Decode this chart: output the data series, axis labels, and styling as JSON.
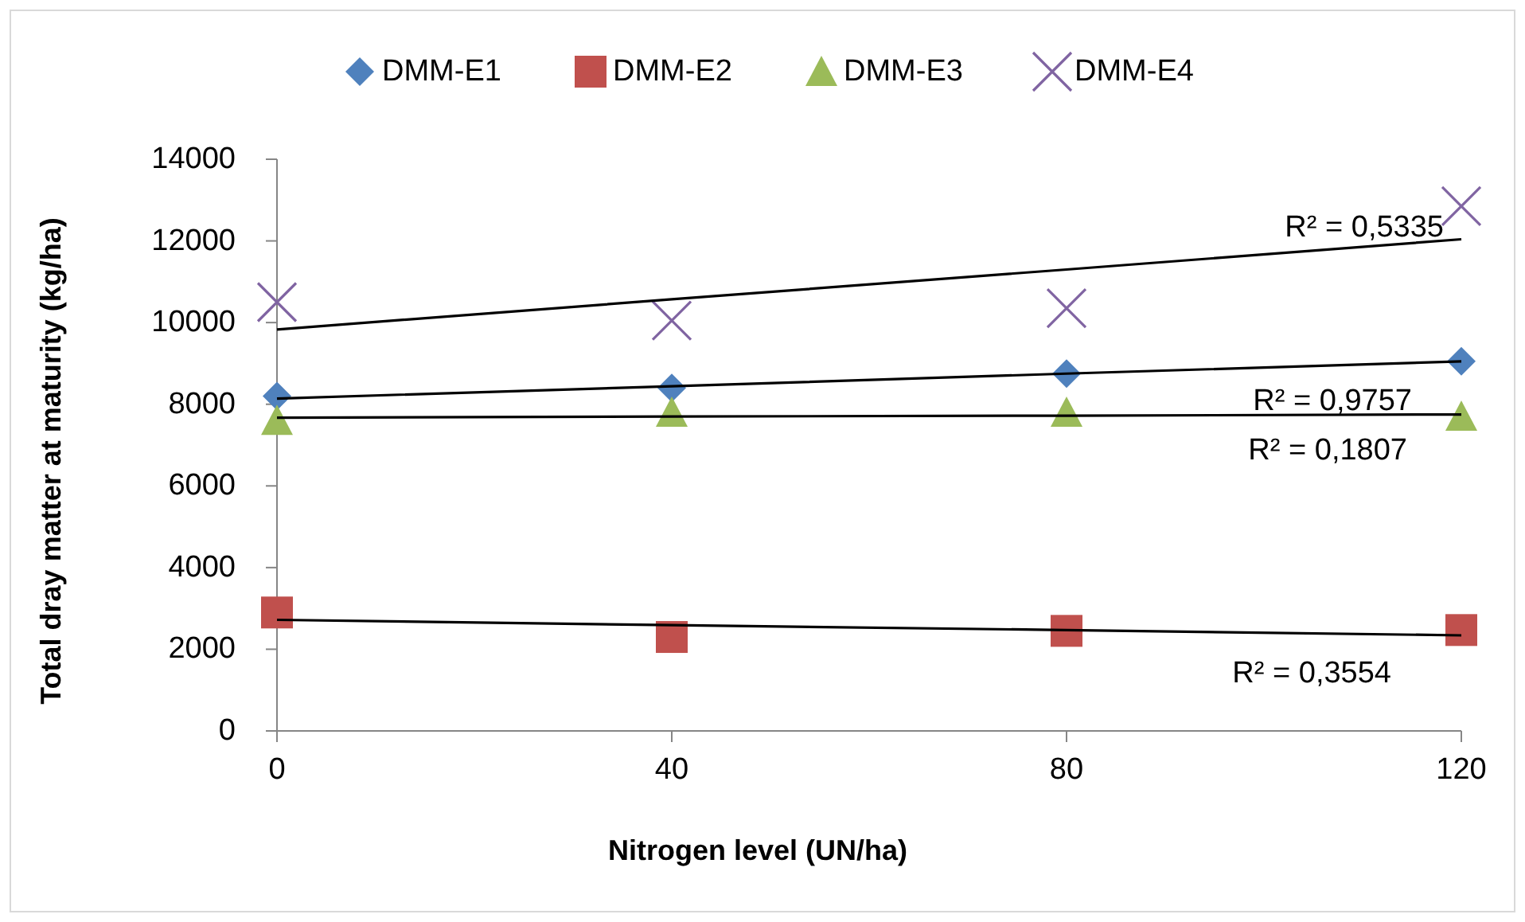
{
  "chart_data": {
    "type": "scatter",
    "xlabel": "Nitrogen level (UN/ha)",
    "ylabel": "Total dray matter at maturity (kg/ha)",
    "x": [
      0,
      40,
      80,
      120
    ],
    "xlim": [
      0,
      120
    ],
    "xticks": [
      0,
      40,
      80,
      120
    ],
    "ylim": [
      0,
      14000
    ],
    "yticks": [
      0,
      2000,
      4000,
      6000,
      8000,
      10000,
      12000,
      14000
    ],
    "grid": false,
    "legend": "top",
    "series": [
      {
        "name": "DMM-E1",
        "color": "#4f81bd",
        "marker": "diamond",
        "values": [
          8200,
          8400,
          8750,
          9050
        ]
      },
      {
        "name": "DMM-E2",
        "color": "#c0504d",
        "marker": "square",
        "values": [
          2900,
          2300,
          2450,
          2470
        ]
      },
      {
        "name": "DMM-E3",
        "color": "#9bbb59",
        "marker": "triangle",
        "values": [
          7600,
          7800,
          7800,
          7700
        ]
      },
      {
        "name": "DMM-E4",
        "color": "#8064a2",
        "marker": "cross",
        "values": [
          10500,
          10050,
          10350,
          12850
        ]
      },
      {
        "type": "line",
        "color": "#000000",
        "marker": "none",
        "values": [
          9830,
          10570,
          11300,
          12040
        ]
      },
      {
        "type": "line",
        "color": "#000000",
        "marker": "none",
        "values": [
          8140,
          8440,
          8750,
          9050
        ]
      },
      {
        "type": "line",
        "color": "#000000",
        "marker": "none",
        "values": [
          7670,
          7700,
          7720,
          7750
        ]
      },
      {
        "type": "line",
        "color": "#000000",
        "marker": "none",
        "values": [
          2720,
          2590,
          2470,
          2340
        ]
      }
    ],
    "annotations": [
      "R² = 0,5335",
      "R² = 0,9757",
      "R² = 0,1807",
      "R² = 0,3554"
    ]
  }
}
